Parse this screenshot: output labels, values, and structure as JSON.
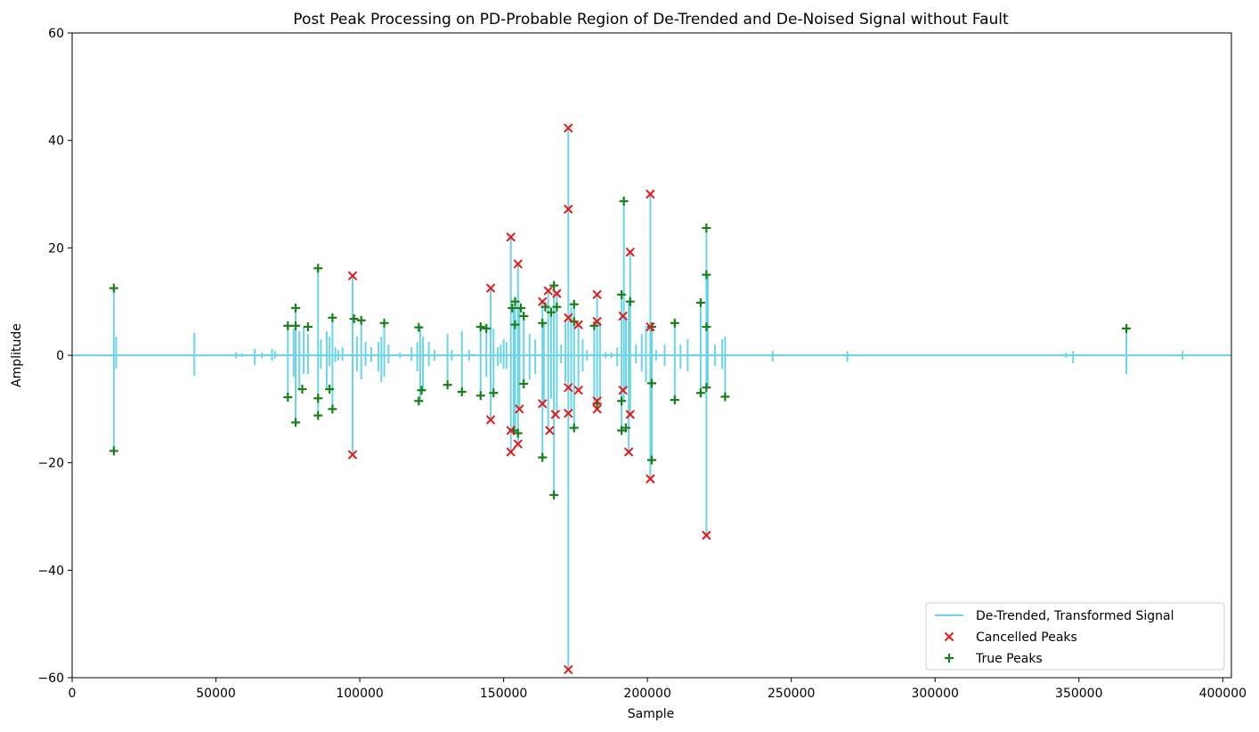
{
  "chart_data": {
    "type": "line",
    "title": "Post Peak Processing on PD-Probable Region of De-Trended and De-Noised Signal without Fault",
    "xlabel": "Sample",
    "ylabel": "Amplitude",
    "xlim": [
      0,
      403000
    ],
    "ylim": [
      -60,
      60
    ],
    "x_ticks": [
      0,
      50000,
      100000,
      150000,
      200000,
      250000,
      300000,
      350000,
      400000
    ],
    "x_tick_labels": [
      "0",
      "50000",
      "100000",
      "150000",
      "200000",
      "250000",
      "300000",
      "350000",
      "400000"
    ],
    "y_ticks": [
      -60,
      -40,
      -20,
      0,
      20,
      40,
      60
    ],
    "y_tick_labels": [
      "−60",
      "−40",
      "−20",
      "0",
      "20",
      "40",
      "60"
    ],
    "grid": false,
    "legend_position": "bottom-right",
    "colors": {
      "signal": "#6cd4e8",
      "cancelled": "#e31a1c",
      "true": "#1a7f1a"
    },
    "signal": {
      "name": "De-Trended, Transformed Signal",
      "baseline": 0,
      "spikes": [
        [
          14500,
          12.5,
          -17.8
        ],
        [
          15300,
          3.5,
          -2.5
        ],
        [
          42500,
          4.2,
          -3.8
        ],
        [
          57000,
          0.6,
          -0.6
        ],
        [
          59000,
          0.4,
          -0.3
        ],
        [
          63500,
          1.2,
          -1.8
        ],
        [
          66000,
          0.5,
          -0.5
        ],
        [
          69500,
          1.2,
          -1.0
        ],
        [
          70500,
          0.8,
          -0.6
        ],
        [
          75000,
          5.5,
          -7.8
        ],
        [
          77000,
          5.0,
          -4.0
        ],
        [
          77700,
          8.8,
          -12.5
        ],
        [
          79000,
          4.5,
          -6.5
        ],
        [
          80500,
          5.3,
          -3.5
        ],
        [
          82000,
          4.0,
          -3.5
        ],
        [
          85500,
          16.2,
          -11.2
        ],
        [
          86500,
          3.0,
          -2.5
        ],
        [
          88500,
          4.5,
          -6.5
        ],
        [
          89500,
          3.5,
          -2.0
        ],
        [
          90500,
          7.0,
          -10.0
        ],
        [
          91500,
          1.5,
          -1.2
        ],
        [
          92500,
          1.0,
          -1.0
        ],
        [
          94000,
          1.5,
          -1.0
        ],
        [
          97500,
          14.8,
          -18.5
        ],
        [
          99000,
          3.5,
          -3.0
        ],
        [
          100500,
          6.5,
          -4.5
        ],
        [
          102000,
          2.5,
          -2.0
        ],
        [
          104000,
          1.5,
          -1.2
        ],
        [
          106500,
          2.5,
          -3.0
        ],
        [
          107500,
          3.5,
          -5.0
        ],
        [
          108500,
          6.0,
          -4.0
        ],
        [
          110000,
          2.0,
          -1.5
        ],
        [
          114000,
          0.5,
          -0.5
        ],
        [
          118000,
          1.5,
          -1.0
        ],
        [
          120000,
          2.5,
          -3.0
        ],
        [
          121000,
          5.5,
          -8.5
        ],
        [
          122000,
          3.5,
          -6.5
        ],
        [
          124000,
          2.5,
          -2.0
        ],
        [
          126000,
          1.0,
          -1.0
        ],
        [
          130500,
          4.0,
          -5.5
        ],
        [
          132000,
          1.0,
          -1.0
        ],
        [
          135500,
          4.5,
          -6.8
        ],
        [
          138000,
          1.0,
          -1.0
        ],
        [
          142000,
          5.3,
          -7.5
        ],
        [
          144000,
          5.0,
          -4.0
        ],
        [
          145500,
          12.5,
          -12.0
        ],
        [
          146500,
          5.0,
          -7.0
        ],
        [
          148000,
          1.5,
          -2.0
        ],
        [
          149000,
          2.0,
          -1.5
        ],
        [
          150000,
          3.0,
          -2.5
        ],
        [
          151000,
          2.5,
          -2.5
        ],
        [
          152500,
          22.0,
          -18.0
        ],
        [
          153500,
          8.8,
          -14.0
        ],
        [
          154000,
          10.0,
          -14.5
        ],
        [
          155000,
          17.0,
          -16.5
        ],
        [
          155500,
          8.8,
          -10.0
        ],
        [
          157000,
          7.3,
          -5.3
        ],
        [
          159000,
          4.0,
          -4.5
        ],
        [
          161000,
          3.0,
          -3.5
        ],
        [
          163500,
          10.0,
          -19.0
        ],
        [
          164000,
          6.0,
          -9.0
        ],
        [
          165500,
          12.0,
          -14.0
        ],
        [
          166500,
          9.0,
          -8.0
        ],
        [
          167500,
          13.0,
          -26.0
        ],
        [
          168500,
          11.5,
          -11.0
        ],
        [
          170000,
          2.0,
          -1.5
        ],
        [
          171500,
          6.5,
          -5.0
        ],
        [
          172500,
          42.3,
          -58.5
        ],
        [
          173500,
          9.0,
          -10.5
        ],
        [
          174500,
          9.5,
          -13.5
        ],
        [
          176000,
          5.7,
          -6.5
        ],
        [
          177500,
          3.0,
          -3.0
        ],
        [
          179000,
          1.0,
          -1.0
        ],
        [
          181500,
          5.5,
          -9.0
        ],
        [
          182500,
          11.3,
          -10.0
        ],
        [
          183500,
          6.3,
          -8.5
        ],
        [
          185500,
          0.6,
          -0.6
        ],
        [
          187500,
          0.5,
          -0.5
        ],
        [
          189500,
          1.5,
          -2.0
        ],
        [
          191000,
          11.3,
          -14.0
        ],
        [
          191800,
          28.7,
          -8.5
        ],
        [
          192500,
          7.3,
          -6.5
        ],
        [
          193500,
          10.0,
          -18.0
        ],
        [
          194000,
          19.2,
          -11.0
        ],
        [
          196000,
          2.0,
          -1.5
        ],
        [
          198000,
          4.0,
          -3.0
        ],
        [
          199500,
          5.5,
          -5.0
        ],
        [
          201000,
          30.0,
          -23.0
        ],
        [
          201500,
          5.3,
          -19.5
        ],
        [
          203000,
          1.0,
          -1.0
        ],
        [
          206000,
          2.0,
          -2.0
        ],
        [
          209500,
          6.0,
          -8.3
        ],
        [
          211500,
          2.0,
          -2.5
        ],
        [
          214000,
          3.0,
          -3.0
        ],
        [
          218500,
          9.8,
          -7.0
        ],
        [
          220500,
          23.7,
          -33.5
        ],
        [
          221000,
          15.0,
          -6.0
        ],
        [
          223500,
          2.0,
          -2.0
        ],
        [
          226000,
          3.0,
          -2.5
        ],
        [
          227000,
          3.5,
          -7.7
        ],
        [
          243500,
          0.8,
          -1.2
        ],
        [
          269500,
          0.8,
          -1.2
        ],
        [
          345500,
          0.5,
          -0.5
        ],
        [
          348000,
          0.8,
          -1.5
        ],
        [
          366500,
          5.0,
          -3.5
        ],
        [
          386000,
          0.8,
          -0.8
        ]
      ]
    },
    "series": [
      {
        "name": "Cancelled Peaks",
        "marker": "x",
        "points": [
          [
            97500,
            14.8
          ],
          [
            97500,
            -18.5
          ],
          [
            145500,
            12.5
          ],
          [
            145500,
            -12.0
          ],
          [
            152500,
            22.0
          ],
          [
            152500,
            -14.0
          ],
          [
            152500,
            -18.0
          ],
          [
            155000,
            17.0
          ],
          [
            155500,
            -10.0
          ],
          [
            155000,
            -16.5
          ],
          [
            163500,
            10.0
          ],
          [
            163500,
            -9.0
          ],
          [
            165500,
            12.0
          ],
          [
            166000,
            -14.0
          ],
          [
            168500,
            11.5
          ],
          [
            168000,
            -11.0
          ],
          [
            172500,
            42.3
          ],
          [
            172500,
            27.2
          ],
          [
            172500,
            7.0
          ],
          [
            172500,
            -6.0
          ],
          [
            172500,
            -10.8
          ],
          [
            172500,
            -58.5
          ],
          [
            176000,
            5.7
          ],
          [
            176000,
            -6.5
          ],
          [
            182500,
            11.3
          ],
          [
            182500,
            6.3
          ],
          [
            182500,
            -8.5
          ],
          [
            182500,
            -10.0
          ],
          [
            191500,
            7.3
          ],
          [
            191500,
            -6.5
          ],
          [
            194000,
            19.2
          ],
          [
            194000,
            -11.0
          ],
          [
            193500,
            -18.0
          ],
          [
            201000,
            30.0
          ],
          [
            201000,
            5.3
          ],
          [
            201000,
            -23.0
          ],
          [
            220500,
            -33.5
          ]
        ]
      },
      {
        "name": "True Peaks",
        "marker": "+",
        "points": [
          [
            14500,
            12.5
          ],
          [
            14500,
            -17.8
          ],
          [
            75000,
            5.5
          ],
          [
            75000,
            -7.8
          ],
          [
            77700,
            8.8
          ],
          [
            77700,
            5.5
          ],
          [
            77700,
            -12.5
          ],
          [
            80000,
            -6.3
          ],
          [
            82000,
            5.3
          ],
          [
            85500,
            16.2
          ],
          [
            85500,
            -8.0
          ],
          [
            85500,
            -11.2
          ],
          [
            89500,
            -6.3
          ],
          [
            90500,
            7.0
          ],
          [
            90500,
            -10.0
          ],
          [
            98000,
            6.8
          ],
          [
            100500,
            6.5
          ],
          [
            108500,
            6.0
          ],
          [
            120500,
            5.2
          ],
          [
            120500,
            -8.5
          ],
          [
            121500,
            -6.5
          ],
          [
            130500,
            -5.5
          ],
          [
            135500,
            -6.8
          ],
          [
            142000,
            5.3
          ],
          [
            142000,
            -7.5
          ],
          [
            144000,
            5.0
          ],
          [
            146500,
            -7.0
          ],
          [
            153000,
            8.8
          ],
          [
            154000,
            10.0
          ],
          [
            154000,
            5.7
          ],
          [
            153500,
            -14.0
          ],
          [
            155000,
            -14.5
          ],
          [
            156000,
            8.8
          ],
          [
            157000,
            7.3
          ],
          [
            157000,
            -5.3
          ],
          [
            163500,
            6.0
          ],
          [
            163500,
            -19.0
          ],
          [
            164500,
            9.0
          ],
          [
            166500,
            8.0
          ],
          [
            167500,
            13.0
          ],
          [
            168500,
            9.0
          ],
          [
            167500,
            -26.0
          ],
          [
            174500,
            9.5
          ],
          [
            174500,
            6.3
          ],
          [
            174500,
            -13.5
          ],
          [
            181500,
            5.5
          ],
          [
            182500,
            -9.0
          ],
          [
            191000,
            11.3
          ],
          [
            191800,
            28.7
          ],
          [
            191000,
            -8.5
          ],
          [
            191000,
            -14.0
          ],
          [
            192500,
            -13.5
          ],
          [
            194000,
            10.0
          ],
          [
            201500,
            5.3
          ],
          [
            201500,
            -5.2
          ],
          [
            201500,
            -19.5
          ],
          [
            209500,
            6.0
          ],
          [
            209500,
            -8.3
          ],
          [
            218500,
            9.8
          ],
          [
            218500,
            -7.0
          ],
          [
            220500,
            23.7
          ],
          [
            220500,
            15.0
          ],
          [
            220500,
            5.3
          ],
          [
            220500,
            -6.0
          ],
          [
            227000,
            -7.7
          ],
          [
            366500,
            5.0
          ]
        ]
      }
    ],
    "legend": [
      "De-Trended, Transformed Signal",
      "Cancelled Peaks",
      "True Peaks"
    ]
  }
}
